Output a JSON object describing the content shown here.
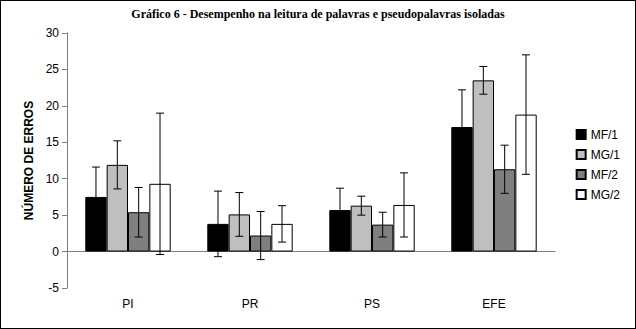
{
  "chart_data": {
    "type": "bar",
    "title": "Gráfico 6 - Desempenho na leitura de palavras e pseudopalavras isoladas",
    "y_label": "NÚMERO DE ERROS",
    "categories": [
      "PI",
      "PR",
      "PS",
      "EFE"
    ],
    "series": [
      {
        "name": "MF/1",
        "color": "#000000",
        "values": [
          7.5,
          3.8,
          5.7,
          17.1
        ],
        "errors": [
          4.1,
          4.5,
          3.0,
          5.1
        ]
      },
      {
        "name": "MG/1",
        "color": "#bfbfbf",
        "values": [
          11.9,
          5.1,
          6.3,
          23.5
        ],
        "errors": [
          3.3,
          3.0,
          1.3,
          1.9
        ]
      },
      {
        "name": "MF/2",
        "color": "#7f7f7f",
        "values": [
          5.4,
          2.2,
          3.7,
          11.3
        ],
        "errors": [
          3.4,
          3.3,
          1.7,
          3.3
        ]
      },
      {
        "name": "MG/2",
        "color": "#ffffff",
        "values": [
          9.3,
          3.8,
          6.4,
          18.8
        ],
        "errors": [
          9.7,
          2.5,
          4.4,
          8.2
        ]
      }
    ],
    "ylim": [
      -5,
      30
    ],
    "yticks": [
      -5,
      0,
      5,
      10,
      15,
      20,
      25,
      30
    ],
    "grid": false,
    "legend": "right"
  }
}
